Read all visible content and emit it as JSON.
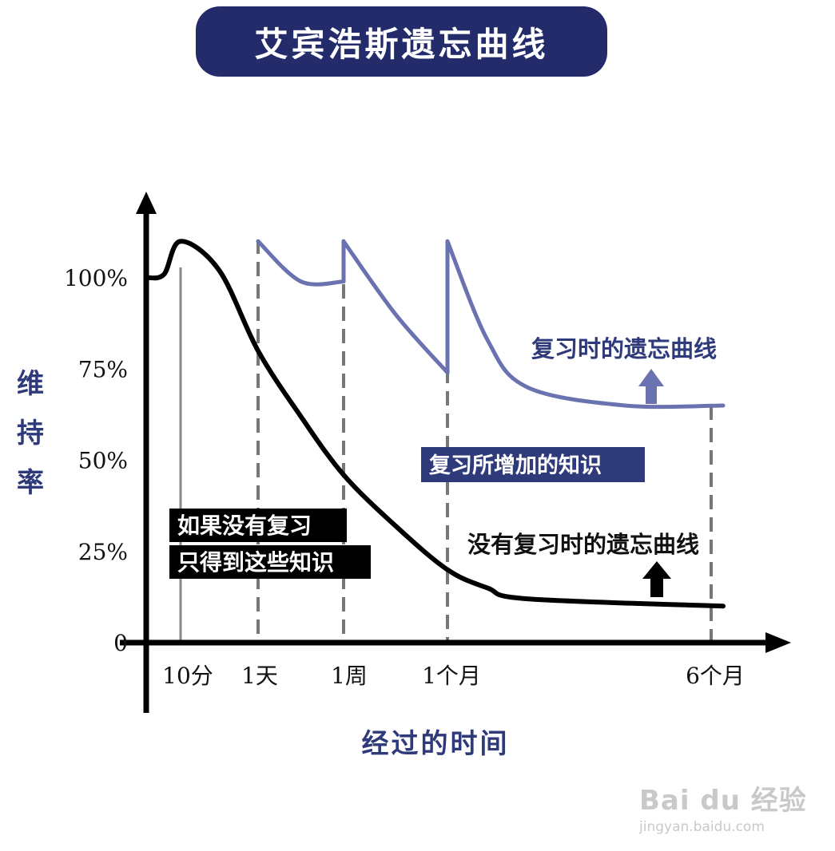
{
  "title": "艾宾浩斯遗忘曲线",
  "y_axis_label": "维持率",
  "x_axis_label": "经过的时间",
  "watermark": {
    "main": "Bai du 经验",
    "url": "jingyan.baidu.com"
  },
  "colors": {
    "title_bg": "#232b6b",
    "axis": "#000000",
    "review_curve": "#6a72b0",
    "label_text": "#2f3a7a",
    "highlight_bg": "#2f3a7a",
    "black_box": "#000000",
    "guide_line": "#777777"
  },
  "chart_data": {
    "type": "line",
    "title": "艾宾浩斯遗忘曲线",
    "ylabel": "维持率",
    "xlabel": "经过的时间",
    "y_ticks": [
      "100%",
      "75%",
      "50%",
      "25%",
      "0"
    ],
    "x_ticks": [
      "10分",
      "1天",
      "1周",
      "1个月",
      "6个月"
    ],
    "series": [
      {
        "name": "没有复习时的遗忘曲线",
        "color": "#000000",
        "points": [
          [
            0,
            100
          ],
          [
            0.5,
            101
          ],
          [
            1,
            110
          ],
          [
            1.5,
            102
          ],
          [
            2,
            80
          ],
          [
            2.5,
            62
          ],
          [
            3,
            46
          ],
          [
            3.5,
            32
          ],
          [
            4,
            20
          ],
          [
            4.5,
            15
          ],
          [
            5,
            12
          ],
          [
            6,
            10
          ]
        ]
      },
      {
        "name": "复习时的遗忘曲线",
        "color": "#6a72b0",
        "points": [
          [
            2,
            110
          ],
          [
            2.5,
            99
          ],
          [
            3,
            99
          ],
          [
            3,
            110
          ],
          [
            3.5,
            90
          ],
          [
            4,
            74
          ],
          [
            4,
            110
          ],
          [
            4.5,
            83
          ],
          [
            5,
            70
          ],
          [
            5.5,
            65
          ],
          [
            6,
            65
          ]
        ]
      }
    ],
    "annotations": {
      "black_box": [
        "如果没有复习",
        "只得到这些知识"
      ],
      "gain_label": "复习所增加的知识",
      "review_label": "复习时的遗忘曲线",
      "no_review_label": "没有复习时的遗忘曲线"
    },
    "grid": false
  }
}
